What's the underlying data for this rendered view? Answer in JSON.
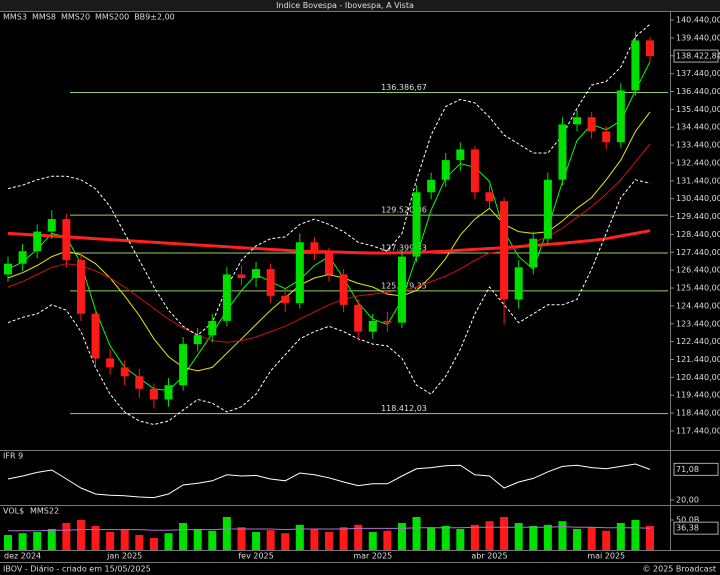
{
  "chart_data": [
    {
      "type": "candlestick",
      "title": "Indice Bovespa - Ibovespa, A Vista",
      "categories": [
        null,
        "dez 2024",
        null,
        null,
        null,
        null,
        null,
        null,
        "jan 2025",
        null,
        null,
        null,
        null,
        null,
        null,
        null,
        null,
        "fev 2025",
        null,
        null,
        null,
        null,
        null,
        null,
        null,
        "mar 2025",
        null,
        null,
        null,
        null,
        null,
        null,
        null,
        "abr 2025",
        null,
        null,
        null,
        null,
        null,
        null,
        null,
        "mai 2025",
        null,
        null,
        null
      ],
      "open": [
        126200,
        126800,
        127500,
        128600,
        129300,
        127000,
        124000,
        121500,
        121000,
        120500,
        119800,
        119200,
        120000,
        122300,
        122800,
        123600,
        126200,
        126000,
        126500,
        125000,
        124600,
        128000,
        127400,
        126200,
        124500,
        123000,
        123600,
        123500,
        127200,
        130800,
        131500,
        132600,
        133200,
        130800,
        130300,
        124800,
        126600,
        128200,
        131500,
        134600,
        135000,
        134200,
        133600,
        136500,
        139300
      ],
      "high": [
        127200,
        127900,
        129000,
        129800,
        129600,
        127300,
        124300,
        122000,
        121400,
        120900,
        120100,
        120400,
        122700,
        123200,
        124000,
        126600,
        126700,
        126900,
        126800,
        125400,
        128500,
        128300,
        127700,
        126500,
        124800,
        124000,
        124100,
        127600,
        131200,
        131900,
        133000,
        133600,
        133400,
        131200,
        130500,
        127000,
        128600,
        131900,
        135000,
        135400,
        135300,
        134500,
        136900,
        139800,
        139500
      ],
      "low": [
        125800,
        126400,
        127100,
        128200,
        126600,
        123600,
        121100,
        120600,
        120000,
        119300,
        118700,
        118800,
        119700,
        121900,
        122400,
        123300,
        125600,
        125500,
        124600,
        124100,
        124300,
        127000,
        125800,
        124100,
        122500,
        122600,
        123000,
        123200,
        126900,
        130400,
        131100,
        132000,
        130400,
        129900,
        123400,
        124300,
        126200,
        127900,
        131200,
        134200,
        133800,
        133200,
        133300,
        136200,
        138100
      ],
      "close": [
        126800,
        127500,
        128600,
        129300,
        127000,
        124000,
        121500,
        121000,
        120500,
        119800,
        119200,
        120000,
        122300,
        122800,
        123600,
        126200,
        126000,
        126500,
        125000,
        124600,
        128000,
        127400,
        126200,
        124500,
        123000,
        123600,
        123500,
        127200,
        130800,
        131500,
        132600,
        133200,
        130800,
        130300,
        124800,
        126600,
        128200,
        131500,
        134600,
        135000,
        134200,
        133600,
        136500,
        139300,
        138422.84
      ],
      "close_labels": [
        null,
        null,
        null,
        null,
        null,
        null,
        null,
        null,
        null,
        null,
        null,
        null,
        null,
        null,
        null,
        null,
        null,
        null,
        null,
        null,
        null,
        null,
        null,
        null,
        null,
        null,
        null,
        null,
        null,
        null,
        null,
        null,
        null,
        null,
        null,
        null,
        null,
        null,
        null,
        null,
        null,
        null,
        null,
        null,
        "138.422,84"
      ],
      "up_color": "#00e000",
      "down_color": "#ff1a1a",
      "series": [
        {
          "name": "MMS3",
          "color": "#00ff00",
          "values": [
            126500,
            126900,
            127600,
            128500,
            128300,
            126800,
            124200,
            122200,
            121000,
            120400,
            119800,
            119700,
            120500,
            121700,
            122900,
            124200,
            125300,
            126200,
            125800,
            125400,
            125900,
            126700,
            127200,
            126000,
            124600,
            123700,
            123400,
            124800,
            127200,
            129800,
            131600,
            132400,
            132200,
            131400,
            128600,
            127200,
            126500,
            128800,
            131400,
            133700,
            134600,
            134300,
            134800,
            136500,
            138100
          ]
        },
        {
          "name": "MMS8",
          "color": "#e6e600",
          "values": [
            126000,
            126300,
            126700,
            127200,
            127500,
            127300,
            126800,
            126000,
            125000,
            123900,
            122600,
            121600,
            121000,
            120800,
            121000,
            121800,
            122600,
            123400,
            124200,
            124900,
            125600,
            126000,
            126200,
            126000,
            125700,
            125500,
            125100,
            125000,
            125300,
            126100,
            127100,
            128400,
            129300,
            129900,
            129000,
            128600,
            128500,
            128600,
            129200,
            129900,
            130500,
            131500,
            132600,
            134200,
            135300
          ]
        },
        {
          "name": "MMS20",
          "color": "#d01010",
          "values": [
            125500,
            125800,
            126200,
            126600,
            126800,
            126700,
            126400,
            126000,
            125500,
            124900,
            124300,
            123700,
            123200,
            122800,
            122500,
            122400,
            122500,
            122700,
            123000,
            123300,
            123700,
            124100,
            124500,
            124800,
            125000,
            125100,
            125200,
            125300,
            125500,
            125800,
            126100,
            126500,
            127000,
            127400,
            127500,
            127700,
            128000,
            128300,
            128800,
            129400,
            130000,
            130700,
            131500,
            132500,
            133500
          ]
        },
        {
          "name": "MMS200",
          "color": "#ff2020",
          "width": 3,
          "values": [
            128500,
            128450,
            128400,
            128350,
            128300,
            128250,
            128200,
            128150,
            128100,
            128050,
            128000,
            127950,
            127900,
            127850,
            127800,
            127750,
            127700,
            127650,
            127600,
            127550,
            127500,
            127480,
            127460,
            127440,
            127420,
            127400,
            127400,
            127410,
            127430,
            127460,
            127500,
            127550,
            127600,
            127650,
            127700,
            127760,
            127820,
            127880,
            127950,
            128020,
            128100,
            128200,
            128350,
            128500,
            128650
          ]
        },
        {
          "name": "BB9±2,00",
          "color": "#ffffff",
          "dashed": true,
          "upper": [
            131000,
            131200,
            131500,
            131700,
            131700,
            131500,
            131000,
            130000,
            128500,
            127000,
            125500,
            124200,
            123300,
            122800,
            123500,
            125500,
            127000,
            127800,
            128200,
            128300,
            129000,
            129300,
            129000,
            128600,
            128000,
            127800,
            127500,
            128500,
            131500,
            134000,
            135600,
            136000,
            135800,
            135000,
            134000,
            133500,
            133000,
            133000,
            134000,
            135500,
            136800,
            137000,
            137800,
            139500,
            140200
          ],
          "lower": [
            123500,
            123800,
            124000,
            124500,
            124200,
            123000,
            121000,
            119500,
            118500,
            118000,
            117800,
            118000,
            118600,
            119200,
            119000,
            118500,
            118800,
            119500,
            120800,
            121700,
            122600,
            123000,
            123300,
            123000,
            122600,
            122300,
            122200,
            121500,
            120000,
            119500,
            120500,
            122000,
            124000,
            125500,
            124500,
            123500,
            124000,
            124500,
            124500,
            124800,
            126500,
            128500,
            130500,
            131500,
            131300
          ]
        }
      ],
      "levels": [
        {
          "value": 136386.67,
          "label": "136.386,67"
        },
        {
          "value": 129520.36,
          "label": "129.520,36"
        },
        {
          "value": 127399.33,
          "label": "127.399,33"
        },
        {
          "value": 125279.35,
          "label": "125.279,35"
        },
        {
          "value": 118412.03,
          "label": "118.412,03"
        }
      ],
      "level_color": "#9acd6a",
      "ylim": [
        116430,
        140890
      ],
      "yticks": [
        {
          "value": 140440,
          "label": "140.440,00"
        },
        {
          "value": 139440,
          "label": "139.440,00"
        },
        {
          "value": 138440,
          "label": "138.440,00"
        },
        {
          "value": 137440,
          "label": "137.440,00"
        },
        {
          "value": 136440,
          "label": "136.440,00"
        },
        {
          "value": 135440,
          "label": "135.440,00"
        },
        {
          "value": 134440,
          "label": "134.440,00"
        },
        {
          "value": 133440,
          "label": "133.440,00"
        },
        {
          "value": 132440,
          "label": "132.440,00"
        },
        {
          "value": 131440,
          "label": "131.440,00"
        },
        {
          "value": 130440,
          "label": "130.440,00"
        },
        {
          "value": 129440,
          "label": "129.440,00"
        },
        {
          "value": 128440,
          "label": "128.440,00"
        },
        {
          "value": 127440,
          "label": "127.440,00"
        },
        {
          "value": 126440,
          "label": "126.440,00"
        },
        {
          "value": 125440,
          "label": "125.440,00"
        },
        {
          "value": 124440,
          "label": "124.440,00"
        },
        {
          "value": 123440,
          "label": "123.440,00"
        },
        {
          "value": 122440,
          "label": "122.440,00"
        },
        {
          "value": 121440,
          "label": "121.440,00"
        },
        {
          "value": 120440,
          "label": "120.440,00"
        },
        {
          "value": 119440,
          "label": "119.440,00"
        },
        {
          "value": 118440,
          "label": "118.440,00"
        },
        {
          "value": 117440,
          "label": "117.440,00"
        }
      ]
    },
    {
      "type": "line",
      "title": "IFR 9",
      "color": "#ffffff",
      "values": [
        55,
        60,
        66,
        70,
        55,
        40,
        30,
        28,
        27,
        25,
        24,
        30,
        45,
        48,
        52,
        62,
        60,
        61,
        55,
        52,
        65,
        62,
        57,
        50,
        44,
        47,
        47,
        60,
        72,
        74,
        77,
        78,
        62,
        60,
        40,
        50,
        56,
        67,
        76,
        78,
        74,
        72,
        76,
        80,
        71.08
      ],
      "value_labels": [
        null,
        null,
        null,
        null,
        null,
        null,
        null,
        null,
        null,
        null,
        null,
        null,
        null,
        null,
        null,
        null,
        null,
        null,
        null,
        null,
        null,
        null,
        null,
        null,
        null,
        null,
        null,
        null,
        null,
        null,
        null,
        null,
        null,
        null,
        null,
        null,
        null,
        null,
        null,
        null,
        null,
        null,
        null,
        null,
        "71,08"
      ],
      "ylim": [
        15,
        95
      ],
      "yticks": [
        {
          "value": 20,
          "label": "20,00"
        }
      ]
    },
    {
      "type": "bar",
      "title": "VOL$",
      "values": [
        25,
        28,
        30,
        35,
        45,
        50,
        40,
        30,
        35,
        25,
        20,
        28,
        45,
        35,
        32,
        55,
        38,
        30,
        33,
        28,
        42,
        35,
        30,
        38,
        42,
        30,
        32,
        45,
        55,
        38,
        40,
        35,
        42,
        48,
        55,
        45,
        40,
        42,
        48,
        35,
        38,
        32,
        45,
        50,
        40
      ],
      "series": [
        {
          "name": "MMS22",
          "color": "#b070d0",
          "values": [
            32,
            32,
            32,
            33,
            33,
            34,
            34,
            34,
            34,
            34,
            33,
            33,
            34,
            34,
            34,
            35,
            35,
            35,
            35,
            34,
            35,
            35,
            35,
            35,
            36,
            36,
            36,
            36,
            37,
            37,
            37,
            37,
            38,
            38,
            38,
            38,
            38,
            38,
            39,
            38,
            38,
            37,
            37,
            37,
            36.38
          ],
          "value_labels": [
            null,
            null,
            null,
            null,
            null,
            null,
            null,
            null,
            null,
            null,
            null,
            null,
            null,
            null,
            null,
            null,
            null,
            null,
            null,
            null,
            null,
            null,
            null,
            null,
            null,
            null,
            null,
            null,
            null,
            null,
            null,
            null,
            null,
            null,
            null,
            null,
            null,
            null,
            null,
            null,
            null,
            null,
            null,
            null,
            "36,38"
          ]
        }
      ],
      "ylim": [
        0,
        70
      ],
      "yticks": [
        {
          "value": 50,
          "label": "50,0B"
        }
      ]
    }
  ],
  "footer": {
    "left": "IBOV - Diário - criado em 15/05/2025",
    "right": "© 2025 Broadcast"
  }
}
